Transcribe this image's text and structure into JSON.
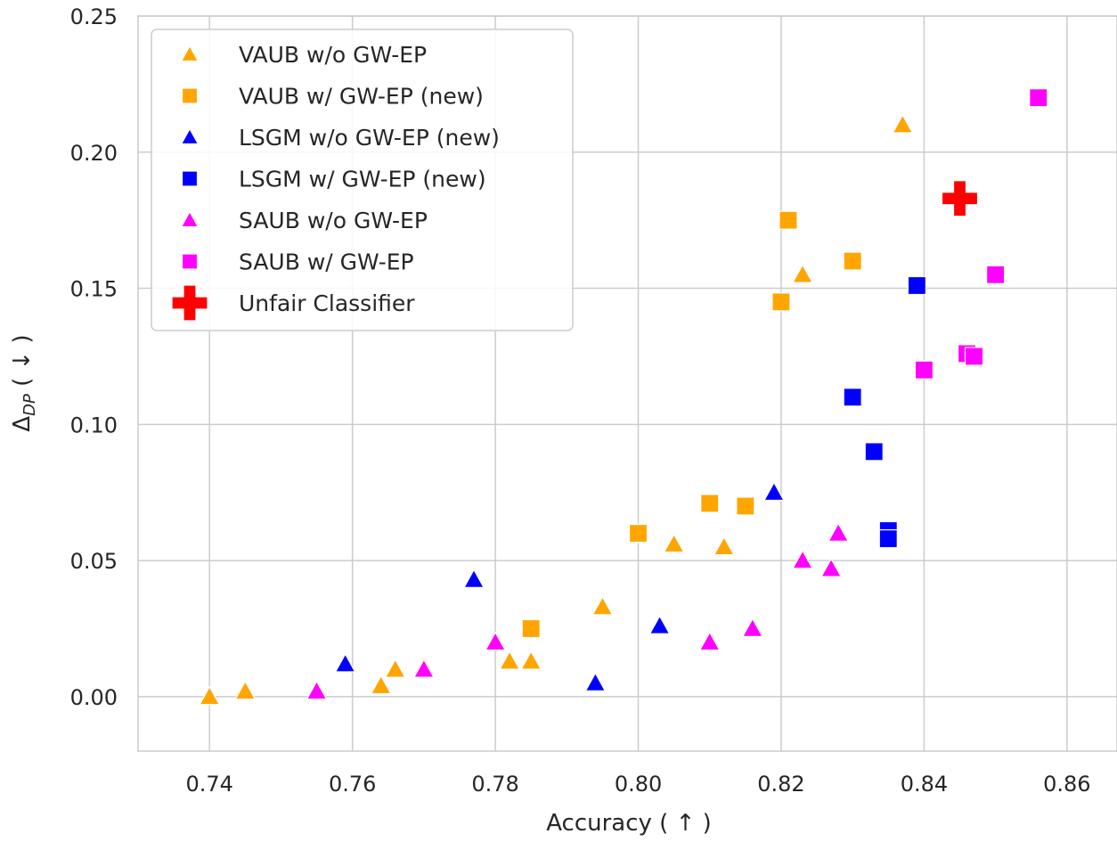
{
  "chart_data": {
    "type": "scatter",
    "title": "",
    "xlabel": "Accuracy ( ↑ )",
    "ylabel_main": "Δ",
    "ylabel_sub": "DP",
    "ylabel_suffix": " ( ↓ )",
    "xlim": [
      0.73,
      0.867
    ],
    "ylim": [
      -0.02,
      0.25
    ],
    "x_ticks": [
      "0.74",
      "0.76",
      "0.78",
      "0.80",
      "0.82",
      "0.84",
      "0.86"
    ],
    "y_ticks": [
      "0.00",
      "0.05",
      "0.10",
      "0.15",
      "0.20",
      "0.25"
    ],
    "grid": true,
    "legend_position": "top-left",
    "series": [
      {
        "name": "VAUB w/o GW-EP",
        "marker": "triangle",
        "color": "#FFA500",
        "points": [
          [
            0.74,
            0.0
          ],
          [
            0.745,
            0.002
          ],
          [
            0.764,
            0.004
          ],
          [
            0.766,
            0.01
          ],
          [
            0.77,
            0.011
          ],
          [
            0.782,
            0.013
          ],
          [
            0.785,
            0.013
          ],
          [
            0.795,
            0.033
          ],
          [
            0.805,
            0.056
          ],
          [
            0.812,
            0.055
          ],
          [
            0.823,
            0.155
          ],
          [
            0.837,
            0.21
          ]
        ]
      },
      {
        "name": "VAUB w/ GW-EP (new)",
        "marker": "square",
        "color": "#FFA500",
        "points": [
          [
            0.785,
            0.025
          ],
          [
            0.8,
            0.06
          ],
          [
            0.81,
            0.071
          ],
          [
            0.815,
            0.07
          ],
          [
            0.82,
            0.145
          ],
          [
            0.821,
            0.175
          ],
          [
            0.83,
            0.16
          ]
        ]
      },
      {
        "name": "LSGM w/o GW-EP (new)",
        "marker": "triangle",
        "color": "#0000FF",
        "points": [
          [
            0.759,
            0.012
          ],
          [
            0.777,
            0.043
          ],
          [
            0.794,
            0.005
          ],
          [
            0.803,
            0.026
          ],
          [
            0.819,
            0.075
          ]
        ]
      },
      {
        "name": "LSGM w/ GW-EP (new)",
        "marker": "square",
        "color": "#0000FF",
        "points": [
          [
            0.83,
            0.11
          ],
          [
            0.833,
            0.09
          ],
          [
            0.835,
            0.061
          ],
          [
            0.835,
            0.058
          ],
          [
            0.839,
            0.151
          ]
        ]
      },
      {
        "name": "SAUB w/o GW-EP",
        "marker": "triangle",
        "color": "#FF00FF",
        "points": [
          [
            0.755,
            0.002
          ],
          [
            0.77,
            0.01
          ],
          [
            0.78,
            0.02
          ],
          [
            0.81,
            0.02
          ],
          [
            0.816,
            0.025
          ],
          [
            0.823,
            0.05
          ],
          [
            0.827,
            0.047
          ],
          [
            0.828,
            0.06
          ]
        ]
      },
      {
        "name": "SAUB w/ GW-EP",
        "marker": "square",
        "color": "#FF00FF",
        "points": [
          [
            0.84,
            0.12
          ],
          [
            0.846,
            0.126
          ],
          [
            0.847,
            0.125
          ],
          [
            0.85,
            0.155
          ],
          [
            0.856,
            0.22
          ]
        ]
      },
      {
        "name": "Unfair Classifier",
        "marker": "plus",
        "color": "#FF0000",
        "points": [
          [
            0.845,
            0.183
          ]
        ]
      }
    ]
  }
}
